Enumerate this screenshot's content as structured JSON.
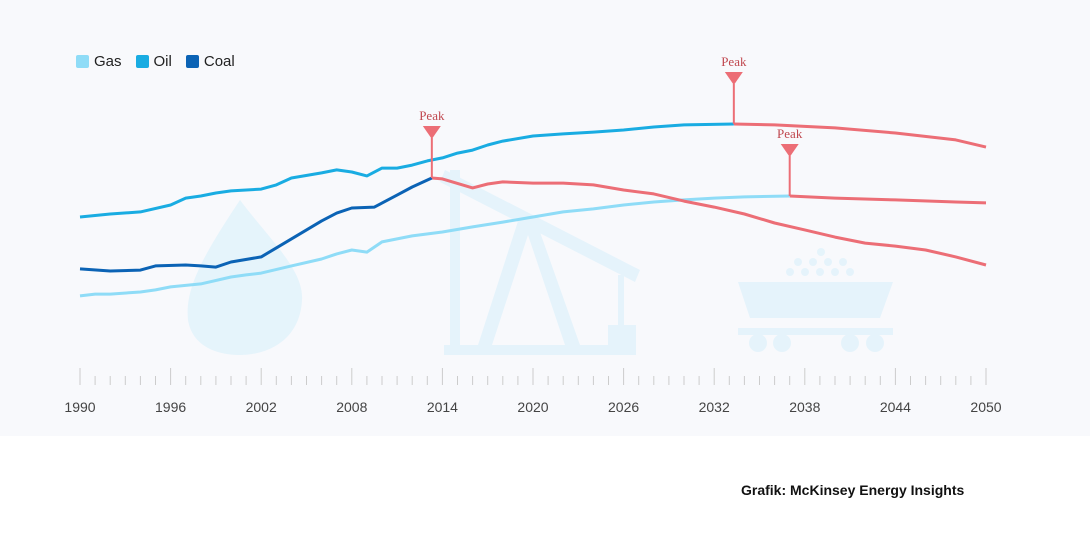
{
  "chart_data": {
    "type": "line",
    "title": "",
    "xlabel": "",
    "ylabel": "",
    "xlim": [
      1990,
      2050
    ],
    "x_ticks": [
      "1990",
      "1996",
      "2002",
      "2008",
      "2014",
      "2020",
      "2026",
      "2032",
      "2038",
      "2044",
      "2050"
    ],
    "y_axis_shown": false,
    "grid": false,
    "legend_placement": "top-left",
    "forecast_color": "#ec6e76",
    "series": [
      {
        "name": "Gas",
        "color": "#8fdcf7",
        "peak_year": 2037,
        "values": [
          [
            1990,
            24.7
          ],
          [
            1991,
            25.3
          ],
          [
            1992,
            25.3
          ],
          [
            1994,
            26.0
          ],
          [
            1995,
            26.7
          ],
          [
            1996,
            27.7
          ],
          [
            1998,
            28.7
          ],
          [
            2000,
            31.0
          ],
          [
            2001,
            31.7
          ],
          [
            2002,
            32.3
          ],
          [
            2004,
            34.7
          ],
          [
            2006,
            37.0
          ],
          [
            2007,
            38.7
          ],
          [
            2008,
            40.0
          ],
          [
            2009,
            39.3
          ],
          [
            2010,
            42.7
          ],
          [
            2012,
            44.7
          ],
          [
            2014,
            46.0
          ],
          [
            2016,
            47.7
          ],
          [
            2018,
            49.3
          ],
          [
            2020,
            51.0
          ],
          [
            2022,
            52.7
          ],
          [
            2024,
            53.7
          ],
          [
            2026,
            55.0
          ],
          [
            2028,
            56.0
          ],
          [
            2030,
            56.7
          ],
          [
            2032,
            57.3
          ],
          [
            2034,
            57.7
          ],
          [
            2037,
            58.0
          ]
        ],
        "forecast": [
          [
            2037,
            58.0
          ],
          [
            2040,
            57.3
          ],
          [
            2044,
            56.7
          ],
          [
            2048,
            56.0
          ],
          [
            2050,
            55.7
          ]
        ]
      },
      {
        "name": "Oil",
        "color": "#19ace2",
        "peak_year": 2033.3,
        "values": [
          [
            1990,
            51.0
          ],
          [
            1992,
            52.0
          ],
          [
            1994,
            52.7
          ],
          [
            1996,
            55.0
          ],
          [
            1997,
            57.3
          ],
          [
            1998,
            58.0
          ],
          [
            1999,
            59.0
          ],
          [
            2000,
            59.7
          ],
          [
            2002,
            60.3
          ],
          [
            2003,
            61.7
          ],
          [
            2004,
            64.0
          ],
          [
            2006,
            65.7
          ],
          [
            2007,
            66.7
          ],
          [
            2008,
            66.0
          ],
          [
            2009,
            64.7
          ],
          [
            2010,
            67.3
          ],
          [
            2011,
            67.3
          ],
          [
            2012,
            68.3
          ],
          [
            2013,
            69.7
          ],
          [
            2014,
            70.7
          ],
          [
            2015,
            72.3
          ],
          [
            2016,
            73.3
          ],
          [
            2017,
            75.0
          ],
          [
            2018,
            76.3
          ],
          [
            2020,
            78.0
          ],
          [
            2022,
            78.7
          ],
          [
            2024,
            79.3
          ],
          [
            2026,
            80.0
          ],
          [
            2028,
            81.0
          ],
          [
            2030,
            81.7
          ],
          [
            2033.3,
            82.0
          ]
        ],
        "forecast": [
          [
            2033.3,
            82.0
          ],
          [
            2036,
            81.7
          ],
          [
            2040,
            80.7
          ],
          [
            2044,
            79.0
          ],
          [
            2048,
            76.7
          ],
          [
            2050,
            74.3
          ]
        ]
      },
      {
        "name": "Coal",
        "color": "#0b63b5",
        "peak_year": 2013.3,
        "values": [
          [
            1990,
            33.7
          ],
          [
            1992,
            33.0
          ],
          [
            1994,
            33.3
          ],
          [
            1995,
            34.7
          ],
          [
            1997,
            35.0
          ],
          [
            1998,
            34.7
          ],
          [
            1999,
            34.3
          ],
          [
            2000,
            36.0
          ],
          [
            2002,
            37.7
          ],
          [
            2003,
            40.7
          ],
          [
            2004,
            43.7
          ],
          [
            2005,
            46.7
          ],
          [
            2006,
            49.7
          ],
          [
            2007,
            52.3
          ],
          [
            2008,
            54.0
          ],
          [
            2009.5,
            54.3
          ],
          [
            2011,
            58.3
          ],
          [
            2012,
            61.0
          ],
          [
            2013.3,
            64.0
          ]
        ],
        "forecast": [
          [
            2013.3,
            64.0
          ],
          [
            2014,
            63.7
          ],
          [
            2016,
            60.7
          ],
          [
            2017,
            62.0
          ],
          [
            2018,
            62.7
          ],
          [
            2020,
            62.3
          ],
          [
            2022,
            62.3
          ],
          [
            2024,
            61.7
          ],
          [
            2026,
            60.0
          ],
          [
            2028,
            58.7
          ],
          [
            2030,
            56.3
          ],
          [
            2032,
            54.3
          ],
          [
            2034,
            52.0
          ],
          [
            2036,
            49.0
          ],
          [
            2038,
            46.7
          ],
          [
            2040,
            44.3
          ],
          [
            2042,
            42.3
          ],
          [
            2044,
            41.3
          ],
          [
            2046,
            40.0
          ],
          [
            2048,
            37.7
          ],
          [
            2050,
            35.0
          ]
        ]
      }
    ],
    "annotations": {
      "peak_label": "Peak"
    }
  },
  "legend": [
    {
      "label": "Gas",
      "color": "#8fdcf7"
    },
    {
      "label": "Oil",
      "color": "#19ace2"
    },
    {
      "label": "Coal",
      "color": "#0b63b5"
    }
  ],
  "watermark_icons": [
    "flame-icon",
    "pumpjack-icon",
    "coal-cart-icon"
  ],
  "credit": "Grafik: McKinsey Energy Insights"
}
